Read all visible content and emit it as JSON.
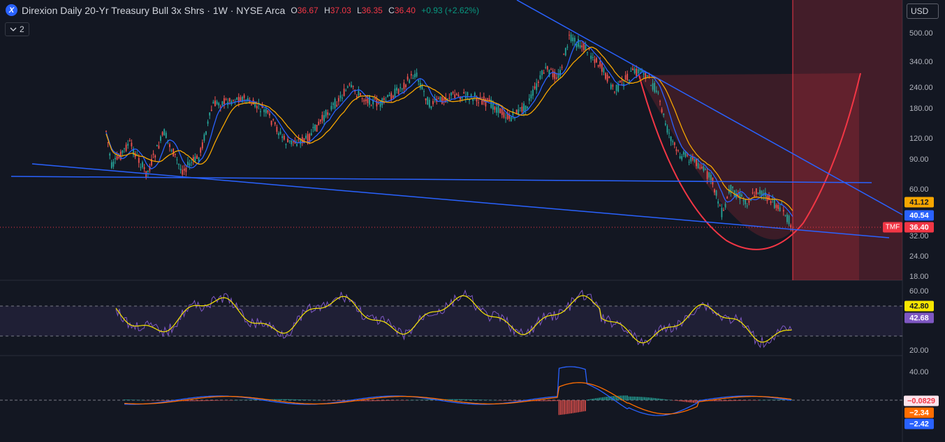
{
  "header": {
    "logo_letter": "X",
    "title": "Direxion Daily 20-Yr Treasury Bull 3x Shrs · 1W · NYSE Arca",
    "ohlc": {
      "o_key": "O",
      "o": "36.67",
      "h_key": "H",
      "h": "37.03",
      "l_key": "L",
      "l": "36.35",
      "c_key": "C",
      "c": "36.40",
      "change": "+0.93 (+2.62%)"
    }
  },
  "indicators_toggle": {
    "icon": "chevron-down-icon",
    "count": "2"
  },
  "currency": "USD",
  "price_axis": {
    "ticks": [
      "500.00",
      "340.00",
      "240.00",
      "180.00",
      "120.00",
      "90.00",
      "60.00",
      "32.00",
      "24.00",
      "18.00"
    ],
    "labels": {
      "ma_slow": "41.12",
      "ma_fast": "40.54",
      "symbol": "TMF",
      "last": "36.40"
    }
  },
  "rsi_axis": {
    "ticks": [
      "60.00",
      "20.00"
    ],
    "labels": {
      "signal": "42.80",
      "rsi": "42.68"
    }
  },
  "macd_axis": {
    "ticks": [
      "40.00"
    ],
    "labels": {
      "hist": "−0.0829",
      "signal": "−2.34",
      "macd": "−2.42"
    }
  },
  "colors": {
    "background": "#131722",
    "trendline": "#2962ff",
    "ma_fast": "#2962ff",
    "ma_slow": "#f7a600",
    "cup": "#f23645",
    "rsi": "#7e57c2",
    "rsi_ma": "#f7e600",
    "macd": "#2962ff",
    "macd_signal": "#ff6d00",
    "hist_up": "#26a69a",
    "hist_down": "#ef5350"
  }
}
